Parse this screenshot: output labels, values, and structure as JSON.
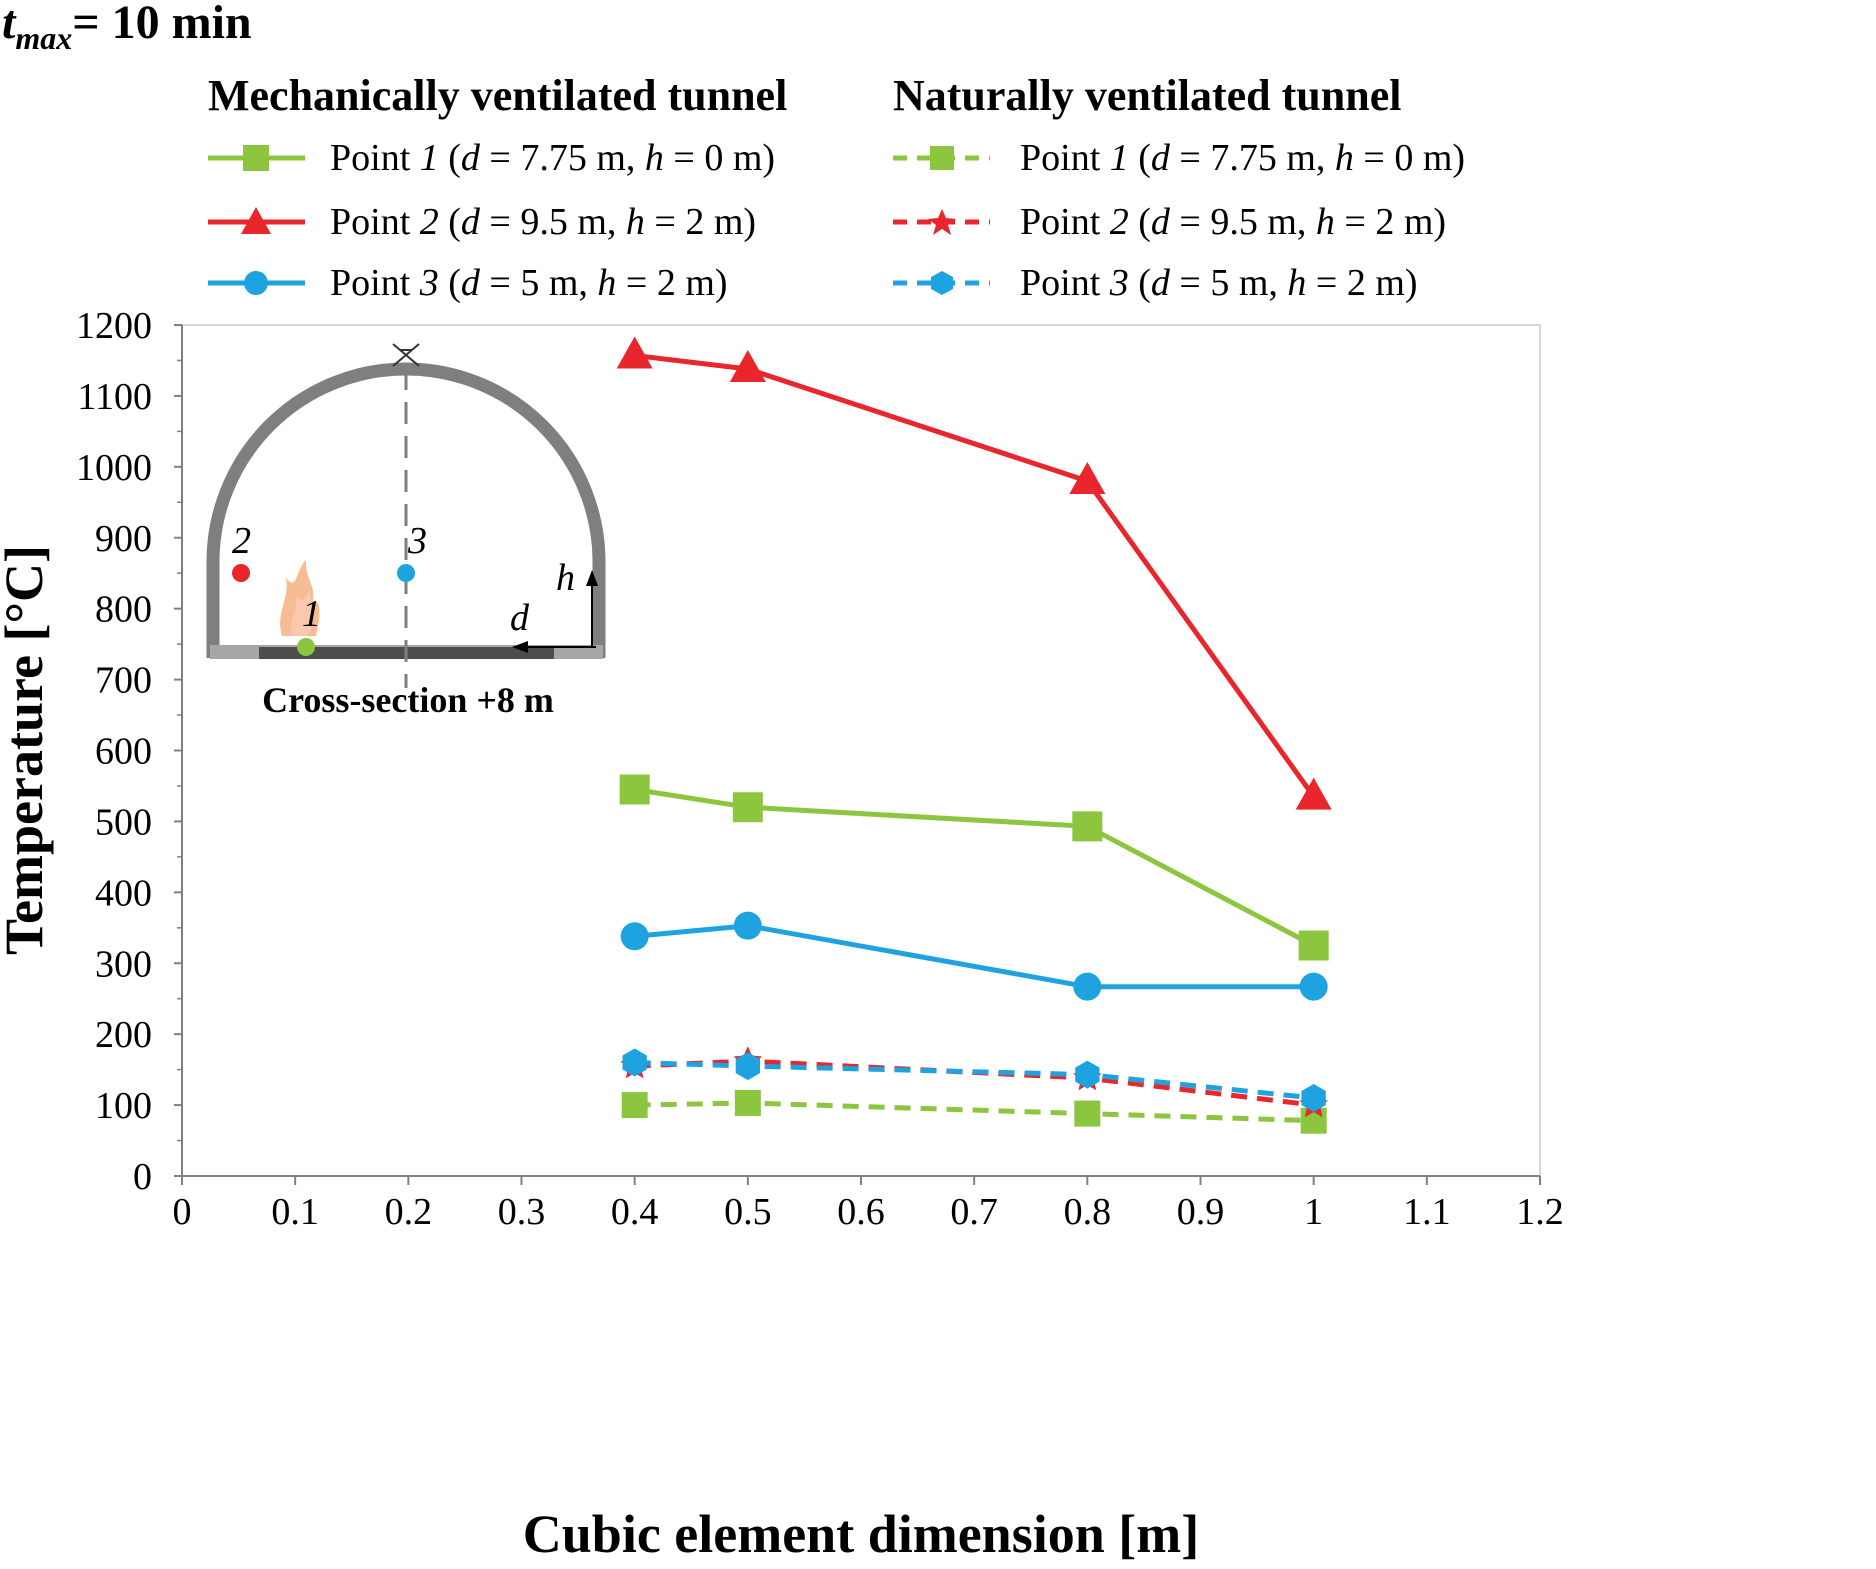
{
  "header": {
    "t_symbol": "t",
    "t_subscript": "max",
    "t_value": "= 10 min"
  },
  "legend": {
    "mech_title": "Mechanically ventilated tunnel",
    "nat_title": "Naturally ventilated tunnel",
    "point1": {
      "pre": "Point ",
      "num": "1",
      "open": " (",
      "d": "d",
      "dval": " = 7.75 m, ",
      "h": "h",
      "hval": " = 0 m)"
    },
    "point2": {
      "pre": "Point ",
      "num": "2",
      "open": " (",
      "d": "d",
      "dval": " = 9.5 m, ",
      "h": "h",
      "hval": " = 2 m)"
    },
    "point3": {
      "pre": "Point ",
      "num": "3",
      "open": " (",
      "d": "d",
      "dval": " = 5 m, ",
      "h": "h",
      "hval": " = 2 m)"
    }
  },
  "inset": {
    "caption": "Cross-section +8 m",
    "label_p1": "1",
    "label_p2": "2",
    "label_p3": "3",
    "label_d": "d",
    "label_h": "h"
  },
  "chart_data": {
    "type": "line",
    "xlabel": "Cubic element dimension [m]",
    "ylabel": "Temperature [°C]",
    "xlim": [
      0,
      1.2
    ],
    "ylim": [
      0,
      1200
    ],
    "xticks": [
      0,
      0.1,
      0.2,
      0.3,
      0.4,
      0.5,
      0.6,
      0.7,
      0.8,
      0.9,
      1,
      1.1,
      1.2
    ],
    "xtick_labels": [
      "0",
      "0.1",
      "0.2",
      "0.3",
      "0.4",
      "0.5",
      "0.6",
      "0.7",
      "0.8",
      "0.9",
      "1",
      "1.1",
      "1.2"
    ],
    "yticks": [
      0,
      100,
      200,
      300,
      400,
      500,
      600,
      700,
      800,
      900,
      1000,
      1100,
      1200
    ],
    "ytick_labels": [
      "0",
      "100",
      "200",
      "300",
      "400",
      "500",
      "600",
      "700",
      "800",
      "900",
      "1000",
      "1100",
      "1200"
    ],
    "x": [
      0.4,
      0.5,
      0.8,
      1.0
    ],
    "series": [
      {
        "name": "Mechanical - Point 1",
        "color": "#8cc63f",
        "marker": "square",
        "dashed": false,
        "values": [
          545,
          520,
          493,
          325
        ]
      },
      {
        "name": "Mechanical - Point 2",
        "color": "#e8262b",
        "marker": "triangle",
        "dashed": false,
        "values": [
          1157,
          1138,
          980,
          535
        ]
      },
      {
        "name": "Mechanical - Point 3",
        "color": "#1fa3e0",
        "marker": "circle",
        "dashed": false,
        "values": [
          338,
          353,
          267,
          267
        ]
      },
      {
        "name": "Natural - Point 1",
        "color": "#8cc63f",
        "marker": "square",
        "dashed": true,
        "values": [
          100,
          103,
          88,
          78
        ]
      },
      {
        "name": "Natural - Point 2",
        "color": "#e8262b",
        "marker": "triangle",
        "dashed": true,
        "values": [
          155,
          162,
          138,
          100
        ]
      },
      {
        "name": "Natural - Point 3",
        "color": "#1fa3e0",
        "marker": "circle",
        "dashed": true,
        "values": [
          160,
          155,
          143,
          110
        ]
      }
    ]
  }
}
